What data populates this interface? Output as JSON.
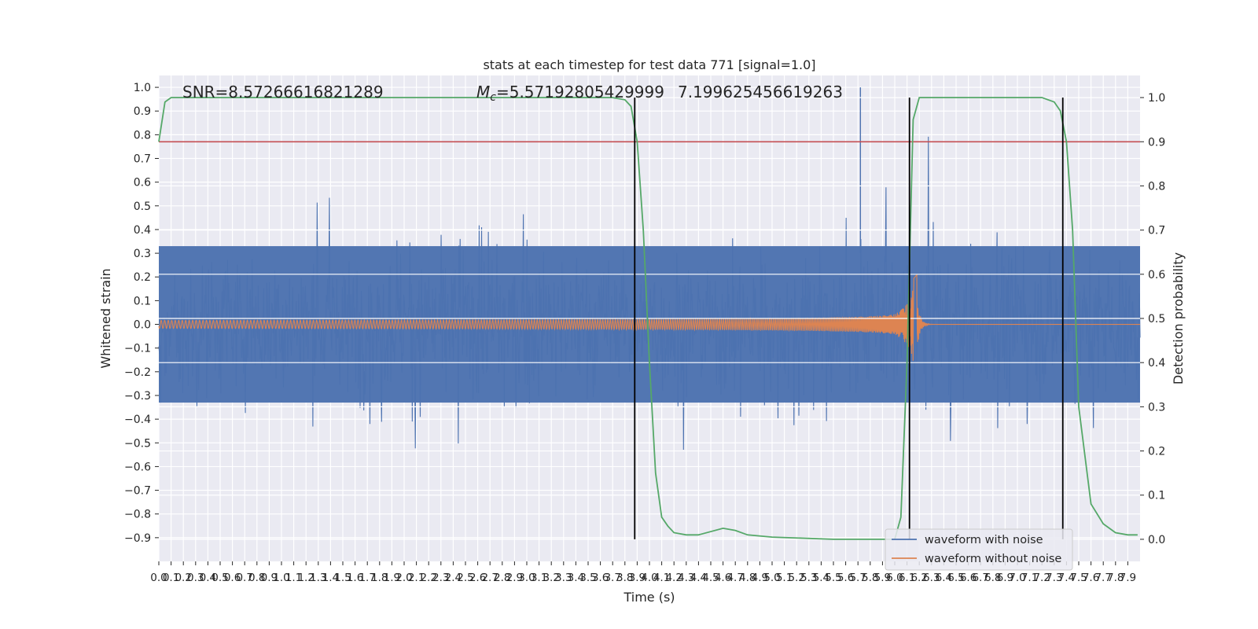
{
  "chart_data": {
    "type": "line",
    "title": "stats at each timestep for test data 771 [signal=1.0]",
    "xlabel": "Time (s)",
    "ylabel": "Whitened strain",
    "y2label": "Detection probability",
    "xlim": [
      0.0,
      8.0
    ],
    "ylim": [
      -1.0,
      1.05
    ],
    "y2lim": [
      -0.05,
      1.05
    ],
    "grid": true,
    "legend_position": "lower-right",
    "annotations": {
      "snr": "SNR=8.57266616821289",
      "mc_prefix": "M",
      "mc_sub": "c",
      "mc_value": "=5.57192805429999",
      "mc_overlap": "7.199625456619263"
    },
    "xticks": [
      "0.0",
      "0.1",
      "0.2",
      "0.3",
      "0.4",
      "0.5",
      "0.6",
      "0.7",
      "0.8",
      "0.9",
      "1.0",
      "1.1",
      "1.2",
      "1.3",
      "1.4",
      "1.5",
      "1.6",
      "1.7",
      "1.8",
      "1.9",
      "2.0",
      "2.1",
      "2.2",
      "2.3",
      "2.4",
      "2.5",
      "2.6",
      "2.7",
      "2.8",
      "2.9",
      "3.0",
      "3.1",
      "3.2",
      "3.3",
      "3.4",
      "3.5",
      "3.6",
      "3.7",
      "3.8",
      "3.9",
      "4.0",
      "4.1",
      "4.2",
      "4.3",
      "4.4",
      "4.5",
      "4.6",
      "4.7",
      "4.8",
      "4.9",
      "5.0",
      "5.1",
      "5.2",
      "5.3",
      "5.4",
      "5.5",
      "5.6",
      "5.7",
      "5.8",
      "5.9",
      "6.0",
      "6.1",
      "6.2",
      "6.3",
      "6.4",
      "6.5",
      "6.6",
      "6.7",
      "6.8",
      "6.9",
      "7.0",
      "7.1",
      "7.2",
      "7.3",
      "7.4",
      "7.5",
      "7.6",
      "7.7",
      "7.8",
      "7.9"
    ],
    "yticks": [
      "1.0",
      "0.9",
      "0.8",
      "0.7",
      "0.6",
      "0.5",
      "0.4",
      "0.3",
      "0.2",
      "0.1",
      "0.0",
      "−0.1",
      "−0.2",
      "−0.3",
      "−0.4",
      "−0.5",
      "−0.6",
      "−0.7",
      "−0.8",
      "−0.9"
    ],
    "yticks_values": [
      1.0,
      0.9,
      0.8,
      0.7,
      0.6,
      0.5,
      0.4,
      0.3,
      0.2,
      0.1,
      0.0,
      -0.1,
      -0.2,
      -0.3,
      -0.4,
      -0.5,
      -0.6,
      -0.7,
      -0.8,
      -0.9
    ],
    "y2ticks": [
      "1.0",
      "0.9",
      "0.8",
      "0.7",
      "0.6",
      "0.5",
      "0.4",
      "0.3",
      "0.2",
      "0.1",
      "0.0"
    ],
    "y2ticks_values": [
      1.0,
      0.9,
      0.8,
      0.7,
      0.6,
      0.5,
      0.4,
      0.3,
      0.2,
      0.1,
      0.0
    ],
    "threshold": 0.9,
    "vlines_x": [
      3.88,
      6.12,
      7.37
    ],
    "series": [
      {
        "name": "waveform with noise",
        "color": "#4c72b0",
        "kind": "noise",
        "envelope": 0.35,
        "max_peak": 1.0
      },
      {
        "name": "waveform without noise",
        "color": "#dd8452",
        "kind": "chirp",
        "merger_time": 6.15,
        "peak_amplitude": 0.27
      }
    ],
    "probability_series": {
      "color": "#55a868",
      "x": [
        0.0,
        0.05,
        0.1,
        0.3,
        1.0,
        2.0,
        3.0,
        3.5,
        3.7,
        3.8,
        3.85,
        3.9,
        3.95,
        4.0,
        4.05,
        4.1,
        4.15,
        4.2,
        4.3,
        4.4,
        4.6,
        4.7,
        4.8,
        5.0,
        5.5,
        6.0,
        6.05,
        6.1,
        6.15,
        6.2,
        6.25,
        6.3,
        7.0,
        7.2,
        7.3,
        7.35,
        7.4,
        7.45,
        7.5,
        7.6,
        7.7,
        7.8,
        7.9,
        7.98
      ],
      "y": [
        0.9,
        0.99,
        1.0,
        1.0,
        1.0,
        1.0,
        1.0,
        1.0,
        1.0,
        0.995,
        0.98,
        0.9,
        0.7,
        0.4,
        0.15,
        0.05,
        0.03,
        0.015,
        0.01,
        0.01,
        0.025,
        0.02,
        0.01,
        0.005,
        0.0,
        0.0,
        0.05,
        0.4,
        0.95,
        1.0,
        1.0,
        1.0,
        1.0,
        1.0,
        0.99,
        0.97,
        0.9,
        0.7,
        0.3,
        0.08,
        0.035,
        0.015,
        0.01,
        0.01
      ]
    }
  }
}
